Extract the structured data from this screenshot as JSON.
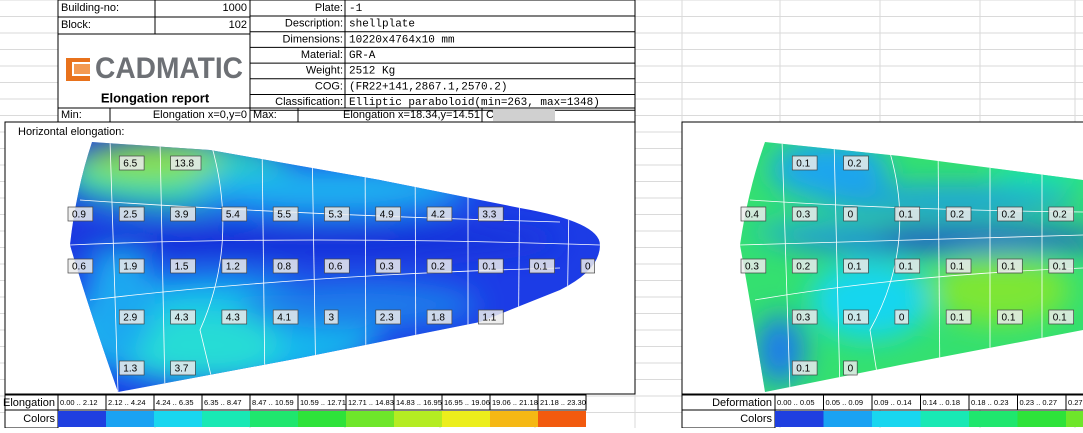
{
  "header": {
    "building_no": {
      "label": "Building-no:",
      "value": "1000"
    },
    "block": {
      "label": "Block:",
      "value": "102"
    },
    "logo": "CADMATIC",
    "report_title": "Elongation report",
    "fields": [
      {
        "label": "Plate:",
        "value": "-1"
      },
      {
        "label": "Description:",
        "value": "shellplate"
      },
      {
        "label": "Dimensions:",
        "value": "10220x4764x10 mm"
      },
      {
        "label": "Material:",
        "value": "GR-A"
      },
      {
        "label": "Weight:",
        "value": "2512 Kg"
      },
      {
        "label": "COG:",
        "value": "(FR22+141,2867.1,2570.2)"
      },
      {
        "label": "Classification:",
        "value": "Elliptic paraboloid(min=263, max=1348)"
      }
    ]
  },
  "summary": {
    "min_label": "Min:",
    "min_value": "Elongation x=0,y=0",
    "max_label": "Max:",
    "max_value": "Elongation x=18.34,y=14.51",
    "creator_label": "Creator:"
  },
  "left_panel": {
    "title": "Horizontal elongation:",
    "labels": [
      [
        "6.5",
        "13.8"
      ],
      [
        "0.9",
        "2.5",
        "3.9",
        "5.4",
        "5.5",
        "5.3",
        "4.9",
        "4.2",
        "3.3"
      ],
      [
        "0.6",
        "1.9",
        "1.5",
        "1.2",
        "0.8",
        "0.6",
        "0.3",
        "0.2",
        "0.1",
        "0.1",
        "0"
      ],
      [
        "2.9",
        "4.3",
        "4.3",
        "4.1",
        "3",
        "2.3",
        "1.8",
        "1.1"
      ],
      [
        "1.3",
        "3.7"
      ]
    ],
    "legend": {
      "name": "Elongation",
      "ranges": [
        "0.00 .. 2.12",
        "2.12 .. 4.24",
        "4.24 .. 6.35",
        "6.35 .. 8.47",
        "8.47 .. 10.59",
        "10.59 .. 12.71",
        "12.71 .. 14.83",
        "14.83 .. 16.95",
        "16.95 .. 19.06",
        "19.06 .. 21.18",
        "21.18 .. 23.30"
      ],
      "colors_label": "Colors",
      "colors": [
        "#1f3fe0",
        "#1aa2f2",
        "#19d6ef",
        "#19e8b4",
        "#1fe66e",
        "#2ee23a",
        "#6ee62a",
        "#b4ec22",
        "#ecee1c",
        "#f5b814",
        "#f25a0e"
      ]
    }
  },
  "right_panel": {
    "labels": [
      [
        "0.1",
        "0.2"
      ],
      [
        "0.4",
        "0.3",
        "0",
        "0.1",
        "0.2",
        "0.2",
        "0.2"
      ],
      [
        "0.3",
        "0.2",
        "0.1",
        "0.1",
        "0.1",
        "0.1",
        "0.1"
      ],
      [
        "0.3",
        "0.1",
        "0",
        "0.1",
        "0.1",
        "0.1"
      ],
      [
        "0.1",
        "0"
      ]
    ],
    "legend": {
      "name": "Deformation",
      "ranges": [
        "0.00 .. 0.05",
        "0.05 .. 0.09",
        "0.09 .. 0.14",
        "0.14 .. 0.18",
        "0.18 .. 0.23",
        "0.23 .. 0.27",
        "0.27"
      ],
      "colors_label": "Colors",
      "colors": [
        "#1f3fe0",
        "#1aa2f2",
        "#19d6ef",
        "#19e8b4",
        "#1fe66e",
        "#2ee23a",
        "#6ee62a"
      ]
    }
  }
}
